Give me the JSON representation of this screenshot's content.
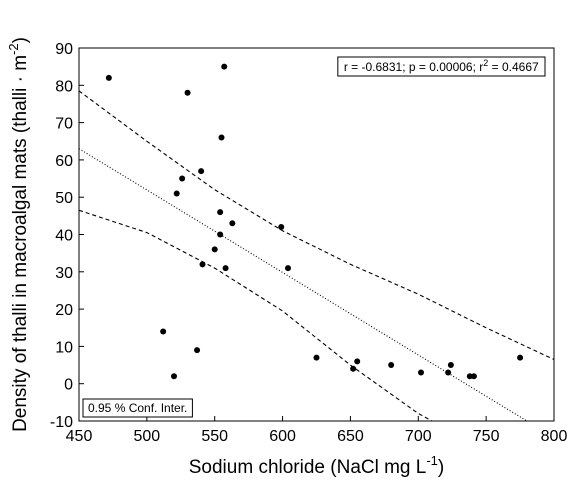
{
  "chart_data": {
    "type": "scatter",
    "title": "",
    "xlabel": "Sodium chloride (NaCl mg L",
    "xlabel_sup": "-1",
    "xlabel_end": ")",
    "ylabel": "Density of thalli in macroalgal mats (thalli · m",
    "ylabel_sup": "-2",
    "ylabel_end": ")",
    "xlim": [
      450,
      800
    ],
    "ylim": [
      -10,
      90
    ],
    "x_ticks": [
      450,
      500,
      550,
      600,
      650,
      700,
      750,
      800
    ],
    "y_ticks": [
      -10,
      0,
      10,
      20,
      30,
      40,
      50,
      60,
      70,
      80,
      90
    ],
    "grid": false,
    "stats_annotation": {
      "text_a": "r = -0.6831; p = 0.00006; r",
      "text_sup": "2",
      "text_b": " = 0.4667",
      "placement": "top-right"
    },
    "conf_annotation": {
      "text": "0.95 % Conf. Inter.",
      "placement": "bottom-left"
    },
    "points": [
      {
        "x": 472,
        "y": 82
      },
      {
        "x": 512,
        "y": 14
      },
      {
        "x": 520,
        "y": 2
      },
      {
        "x": 522,
        "y": 51
      },
      {
        "x": 526,
        "y": 55
      },
      {
        "x": 530,
        "y": 78
      },
      {
        "x": 537,
        "y": 9
      },
      {
        "x": 540,
        "y": 57
      },
      {
        "x": 541,
        "y": 32
      },
      {
        "x": 550,
        "y": 36
      },
      {
        "x": 554,
        "y": 40
      },
      {
        "x": 554,
        "y": 46
      },
      {
        "x": 555,
        "y": 66
      },
      {
        "x": 557,
        "y": 85
      },
      {
        "x": 558,
        "y": 31
      },
      {
        "x": 563,
        "y": 43
      },
      {
        "x": 599,
        "y": 42
      },
      {
        "x": 604,
        "y": 31
      },
      {
        "x": 625,
        "y": 7
      },
      {
        "x": 652,
        "y": 4
      },
      {
        "x": 655,
        "y": 6
      },
      {
        "x": 680,
        "y": 5
      },
      {
        "x": 702,
        "y": 3
      },
      {
        "x": 722,
        "y": 3
      },
      {
        "x": 724,
        "y": 5
      },
      {
        "x": 738,
        "y": 2
      },
      {
        "x": 741,
        "y": 2
      },
      {
        "x": 775,
        "y": 7
      }
    ],
    "regression_line": {
      "style": "dotted",
      "x": [
        450,
        780
      ],
      "y": [
        63,
        -10
      ]
    },
    "upper_conf_band": {
      "style": "dashed",
      "x": [
        450,
        500,
        550,
        600,
        650,
        700,
        750,
        800
      ],
      "y": [
        78.5,
        65,
        52,
        41,
        32,
        24,
        15,
        6.5
      ]
    },
    "lower_conf_band": {
      "style": "dashed",
      "x": [
        450,
        500,
        550,
        600,
        650,
        700,
        730
      ],
      "y": [
        46.5,
        40.5,
        31,
        19.5,
        5,
        -8,
        -14
      ]
    }
  }
}
